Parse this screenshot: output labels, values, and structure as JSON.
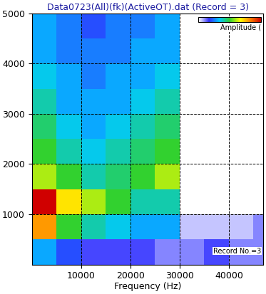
{
  "chart_data": {
    "type": "heatmap",
    "title": "Data0723(All)(fk)(ActiveOT).dat (Record = 3)",
    "x_label": "Frequency (Hz)",
    "x_edges": [
      0,
      5000,
      10000,
      15000,
      20000,
      25000,
      30000,
      35000,
      40000,
      45000,
      47000
    ],
    "y_edges": [
      0,
      500,
      1000,
      1500,
      2000,
      2500,
      3000,
      3500,
      4000,
      4500,
      5000
    ],
    "cells": [
      [
        0.3,
        0.2,
        0.15,
        0.15,
        0.15,
        0.1,
        0.1,
        0.15,
        0.1,
        0.1
      ],
      [
        0.8,
        0.5,
        0.4,
        0.35,
        0.3,
        0.3,
        0.05,
        0.05,
        0.05,
        0.1
      ],
      [
        1.0,
        0.7,
        0.6,
        0.5,
        0.4,
        0.4,
        0.0,
        0.0,
        0.0,
        0.0
      ],
      [
        0.6,
        0.5,
        0.4,
        0.45,
        0.5,
        0.6,
        0.0,
        0.0,
        0.0,
        0.0
      ],
      [
        0.5,
        0.4,
        0.35,
        0.4,
        0.45,
        0.5,
        0.0,
        0.0,
        0.0,
        0.0
      ],
      [
        0.45,
        0.35,
        0.3,
        0.35,
        0.4,
        0.45,
        0.0,
        0.0,
        0.0,
        0.0
      ],
      [
        0.4,
        0.3,
        0.3,
        0.3,
        0.35,
        0.4,
        0.0,
        0.0,
        0.0,
        0.0
      ],
      [
        0.35,
        0.3,
        0.25,
        0.3,
        0.3,
        0.35,
        0.0,
        0.0,
        0.0,
        0.0
      ],
      [
        0.3,
        0.25,
        0.25,
        0.25,
        0.3,
        0.3,
        0.0,
        0.0,
        0.0,
        0.0
      ],
      [
        0.3,
        0.25,
        0.2,
        0.25,
        0.25,
        0.3,
        0.0,
        0.0,
        0.0,
        0.0
      ]
    ],
    "colorbar_label": "Amplitude (",
    "colorbar_range": [
      0,
      1
    ],
    "colorbar_ticks": [],
    "annotations": [
      "Record No.=3"
    ],
    "xlim": [
      0,
      47000
    ],
    "ylim": [
      0,
      5000
    ],
    "xticks": [
      10000,
      20000,
      30000,
      40000
    ],
    "yticks": [
      1000,
      2000,
      3000,
      4000,
      5000
    ],
    "grid": true
  }
}
